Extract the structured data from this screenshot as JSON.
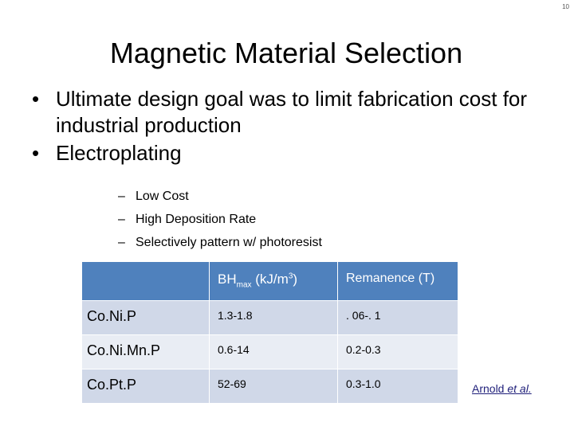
{
  "slide_number": "10",
  "title": "Magnetic Material Selection",
  "bullets": [
    "Ultimate design goal was to limit fabrication cost for industrial production",
    "Electroplating"
  ],
  "sub_bullets": [
    "Low Cost",
    "High Deposition Rate",
    "Selectively pattern w/ photoresist"
  ],
  "table": {
    "headers": {
      "bh_prefix": "BH",
      "bh_subscript": "max",
      "bh_units_open": " (kJ/m",
      "bh_units_sup": "3",
      "bh_units_close": ")",
      "remanence": "Remanence (T)"
    },
    "rows": [
      {
        "material": "Co.Ni.P",
        "bhmax": "1.3-1.8",
        "remanence": ". 06-. 1"
      },
      {
        "material": "Co.Ni.Mn.P",
        "bhmax": "0.6-14",
        "remanence": "0.2-0.3"
      },
      {
        "material": "Co.Pt.P",
        "bhmax": "52-69",
        "remanence": "0.3-1.0"
      }
    ]
  },
  "citation": {
    "author": "Arnold ",
    "etal": "et al."
  },
  "colors": {
    "header_bg": "#4f81bd",
    "row_a_bg": "#d0d8e8",
    "row_b_bg": "#e9edf4"
  }
}
